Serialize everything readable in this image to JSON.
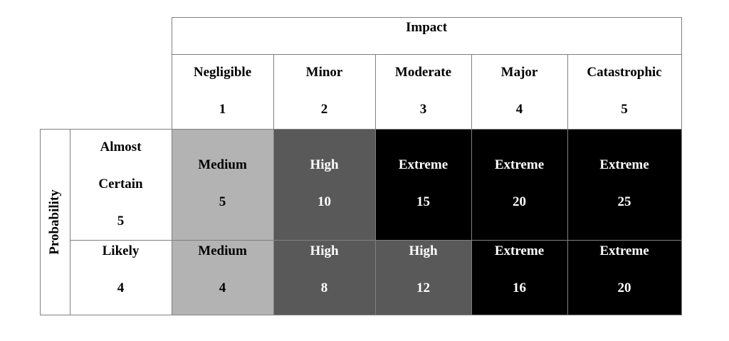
{
  "impact_header": "Impact",
  "probability_header": "Probability",
  "columns": [
    {
      "label": "Negligible",
      "score": "1"
    },
    {
      "label": "Minor",
      "score": "2"
    },
    {
      "label": "Moderate",
      "score": "3"
    },
    {
      "label": "Major",
      "score": "4"
    },
    {
      "label": "Catastrophic",
      "score": "5"
    }
  ],
  "rows": [
    {
      "label_line1": "Almost",
      "label_line2": "Certain",
      "score": "5",
      "cells": [
        {
          "level": "Medium",
          "value": "5",
          "shade": "#b3b3b3"
        },
        {
          "level": "High",
          "value": "10",
          "shade": "#595959"
        },
        {
          "level": "Extreme",
          "value": "15",
          "shade": "#000000"
        },
        {
          "level": "Extreme",
          "value": "20",
          "shade": "#000000"
        },
        {
          "level": "Extreme",
          "value": "25",
          "shade": "#000000"
        }
      ]
    },
    {
      "label_line1": "Likely",
      "score": "4",
      "cells": [
        {
          "level": "Medium",
          "value": "4",
          "shade": "#b3b3b3"
        },
        {
          "level": "High",
          "value": "8",
          "shade": "#595959"
        },
        {
          "level": "High",
          "value": "12",
          "shade": "#595959"
        },
        {
          "level": "Extreme",
          "value": "16",
          "shade": "#000000"
        },
        {
          "level": "Extreme",
          "value": "20",
          "shade": "#000000"
        }
      ]
    }
  ]
}
